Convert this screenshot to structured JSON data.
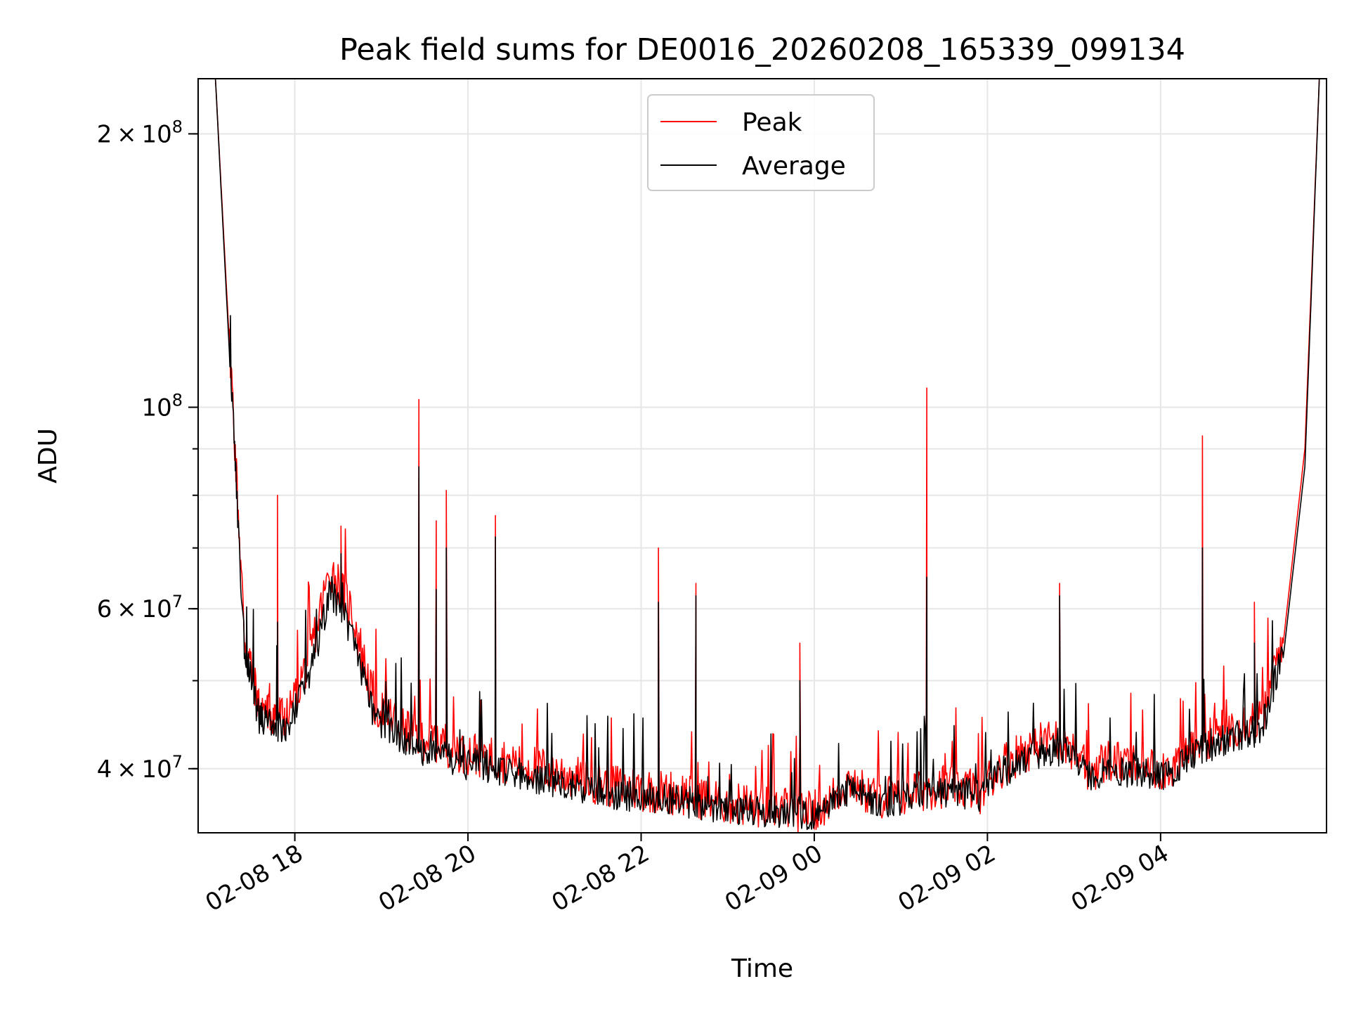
{
  "chart_data": {
    "type": "line",
    "title": "Peak field sums for DE0016_20260208_165339_099134",
    "xlabel": "Time",
    "ylabel": "ADU",
    "x_ticks": [
      "02-08 18",
      "02-08 20",
      "02-08 22",
      "02-09 00",
      "02-09 02",
      "02-09 04"
    ],
    "y_ticks": [
      {
        "value": 40000000,
        "base": "4",
        "exp": "7",
        "times": "×"
      },
      {
        "value": 60000000,
        "base": "6",
        "exp": "7",
        "times": "×"
      },
      {
        "value": 100000000,
        "base": "",
        "exp": "8",
        "times": ""
      },
      {
        "value": 200000000,
        "base": "2",
        "exp": "8",
        "times": "×"
      }
    ],
    "y_base_ten": "10",
    "y_scale": "log",
    "xlim": [
      "2026-02-08 16:53",
      "2026-02-09 05:55"
    ],
    "ylim": [
      34000000,
      230000000
    ],
    "grid": true,
    "legend_position": "top-center",
    "series": [
      {
        "name": "Peak",
        "color": "#ff0000",
        "x": [
          "2026-02-08 17:05",
          "2026-02-08 17:15",
          "2026-02-08 17:25",
          "2026-02-08 17:35",
          "2026-02-08 17:45",
          "2026-02-08 17:55",
          "2026-02-08 18:10",
          "2026-02-08 18:25",
          "2026-02-08 18:40",
          "2026-02-08 18:55",
          "2026-02-08 19:10",
          "2026-02-08 19:25",
          "2026-02-08 19:40",
          "2026-02-08 19:55",
          "2026-02-08 20:10",
          "2026-02-08 20:25",
          "2026-02-08 20:40",
          "2026-02-08 20:55",
          "2026-02-08 21:10",
          "2026-02-08 21:25",
          "2026-02-08 21:40",
          "2026-02-08 21:55",
          "2026-02-08 22:10",
          "2026-02-08 22:25",
          "2026-02-08 22:40",
          "2026-02-08 22:55",
          "2026-02-08 23:10",
          "2026-02-08 23:25",
          "2026-02-08 23:40",
          "2026-02-08 23:55",
          "2026-02-09 00:10",
          "2026-02-09 00:25",
          "2026-02-09 00:40",
          "2026-02-09 00:55",
          "2026-02-09 01:10",
          "2026-02-09 01:25",
          "2026-02-09 01:40",
          "2026-02-09 01:55",
          "2026-02-09 02:10",
          "2026-02-09 02:25",
          "2026-02-09 02:40",
          "2026-02-09 02:55",
          "2026-02-09 03:10",
          "2026-02-09 03:25",
          "2026-02-09 03:40",
          "2026-02-09 03:55",
          "2026-02-09 04:10",
          "2026-02-09 04:25",
          "2026-02-09 04:40",
          "2026-02-09 04:55",
          "2026-02-09 05:10",
          "2026-02-09 05:25",
          "2026-02-09 05:40",
          "2026-02-09 05:50"
        ],
        "y": [
          230000000,
          115000000,
          55000000,
          46000000,
          45000000,
          44500000,
          52000000,
          65000000,
          58000000,
          46000000,
          44000000,
          42500000,
          42000000,
          41000000,
          40500000,
          40000000,
          39500000,
          39000000,
          38500000,
          38000000,
          37500000,
          37200000,
          37000000,
          36800000,
          36500000,
          36000000,
          35800000,
          35500000,
          35500000,
          35200000,
          36000000,
          38000000,
          36500000,
          36500000,
          37000000,
          37500000,
          37500000,
          37000000,
          39500000,
          41000000,
          42000000,
          42000000,
          39000000,
          40000000,
          39500000,
          39000000,
          39500000,
          42000000,
          43000000,
          44000000,
          44500000,
          55000000,
          90000000,
          230000000
        ]
      },
      {
        "name": "Average",
        "color": "#000000",
        "x": [
          "2026-02-08 17:05",
          "2026-02-08 17:15",
          "2026-02-08 17:25",
          "2026-02-08 17:35",
          "2026-02-08 17:45",
          "2026-02-08 17:55",
          "2026-02-08 18:10",
          "2026-02-08 18:25",
          "2026-02-08 18:40",
          "2026-02-08 18:55",
          "2026-02-08 19:10",
          "2026-02-08 19:25",
          "2026-02-08 19:40",
          "2026-02-08 19:55",
          "2026-02-08 20:10",
          "2026-02-08 20:25",
          "2026-02-08 20:40",
          "2026-02-08 20:55",
          "2026-02-08 21:10",
          "2026-02-08 21:25",
          "2026-02-08 21:40",
          "2026-02-08 21:55",
          "2026-02-08 22:10",
          "2026-02-08 22:25",
          "2026-02-08 22:40",
          "2026-02-08 22:55",
          "2026-02-08 23:10",
          "2026-02-08 23:25",
          "2026-02-08 23:40",
          "2026-02-08 23:55",
          "2026-02-09 00:10",
          "2026-02-09 00:25",
          "2026-02-09 00:40",
          "2026-02-09 00:55",
          "2026-02-09 01:10",
          "2026-02-09 01:25",
          "2026-02-09 01:40",
          "2026-02-09 01:55",
          "2026-02-09 02:10",
          "2026-02-09 02:25",
          "2026-02-09 02:40",
          "2026-02-09 02:55",
          "2026-02-09 03:10",
          "2026-02-09 03:25",
          "2026-02-09 03:40",
          "2026-02-09 03:55",
          "2026-02-09 04:10",
          "2026-02-09 04:25",
          "2026-02-09 04:40",
          "2026-02-09 04:55",
          "2026-02-09 05:10",
          "2026-02-09 05:25",
          "2026-02-09 05:40",
          "2026-02-09 05:50"
        ],
        "y": [
          230000000,
          112000000,
          54000000,
          45000000,
          44000000,
          43500000,
          50000000,
          62000000,
          55000000,
          45000000,
          43000000,
          41500000,
          41000000,
          40000000,
          39800000,
          39300000,
          38800000,
          38300000,
          37800000,
          37300000,
          37000000,
          36800000,
          36600000,
          36400000,
          36100000,
          35700000,
          35500000,
          35300000,
          35300000,
          35000000,
          35800000,
          37600000,
          36300000,
          36300000,
          36800000,
          37200000,
          37200000,
          36800000,
          39000000,
          40500000,
          41300000,
          41300000,
          38600000,
          39600000,
          39100000,
          38700000,
          39100000,
          41300000,
          42200000,
          43000000,
          43500000,
          53000000,
          86000000,
          230000000
        ]
      }
    ],
    "spikes": [
      {
        "x": "2026-02-08 17:48",
        "peak": 80000000,
        "average": 58000000
      },
      {
        "x": "2026-02-08 19:26",
        "peak": 102000000,
        "average": 86000000
      },
      {
        "x": "2026-02-08 19:45",
        "peak": 81000000,
        "average": 70000000
      },
      {
        "x": "2026-02-08 19:38",
        "peak": 75000000,
        "average": 63000000
      },
      {
        "x": "2026-02-08 18:32",
        "peak": 74000000,
        "average": 69000000
      },
      {
        "x": "2026-02-08 20:19",
        "peak": 76000000,
        "average": 72000000
      },
      {
        "x": "2026-02-08 22:12",
        "peak": 70000000,
        "average": 61000000
      },
      {
        "x": "2026-02-08 22:38",
        "peak": 64000000,
        "average": 62000000
      },
      {
        "x": "2026-02-09 01:18",
        "peak": 105000000,
        "average": 65000000
      },
      {
        "x": "2026-02-09 02:50",
        "peak": 64000000,
        "average": 62000000
      },
      {
        "x": "2026-02-09 04:29",
        "peak": 93000000,
        "average": 70000000
      },
      {
        "x": "2026-02-09 05:05",
        "peak": 61000000,
        "average": 55000000
      },
      {
        "x": "2026-02-08 23:50",
        "peak": 55000000,
        "average": 50000000
      }
    ]
  }
}
